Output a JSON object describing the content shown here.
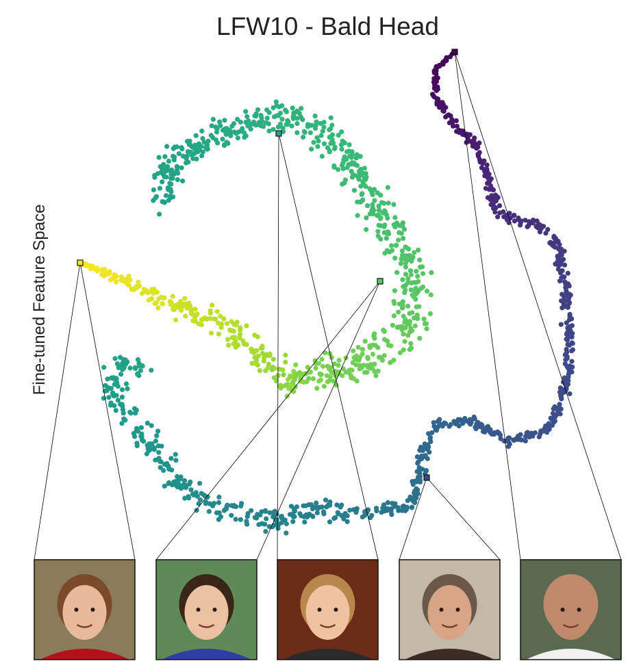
{
  "chart_data": {
    "type": "scatter",
    "title": "LFW10 - Bald Head",
    "xlabel": "",
    "ylabel": "Fine-tuned Feature Space",
    "grid": false,
    "legend": "none",
    "colormap": "viridis",
    "description": "2D embedding of face images colored by attribute score (dark purple = bald, yellow = full hair). Five highlighted points link to example face thumbnails.",
    "highlighted_points": [
      {
        "name": "thumb-1",
        "color": "#fde725"
      },
      {
        "name": "thumb-2",
        "color": "#5ec962"
      },
      {
        "name": "thumb-3",
        "color": "#2a9d8f"
      },
      {
        "name": "thumb-4",
        "color": "#414487"
      },
      {
        "name": "thumb-5",
        "color": "#440154"
      }
    ]
  },
  "colors": {
    "axis_text": "#222222",
    "leader_line": "#000000",
    "background": "#ffffff"
  }
}
